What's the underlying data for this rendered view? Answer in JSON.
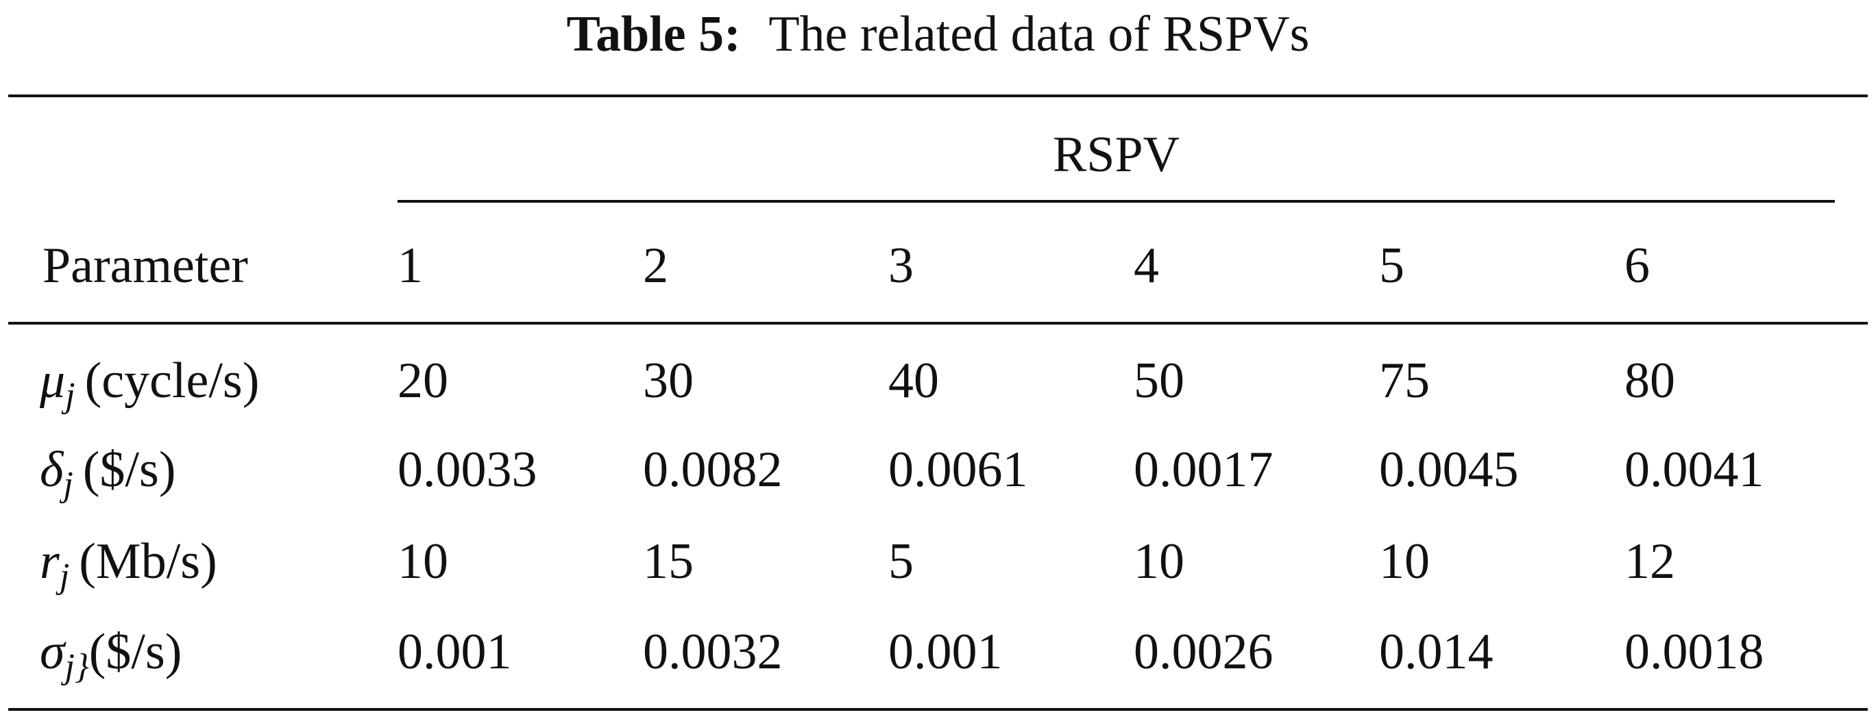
{
  "caption": {
    "label": "Table 5:",
    "text": "The related data of RSPVs"
  },
  "table": {
    "group_header": "RSPV",
    "stub_header": "Parameter",
    "columns": [
      "1",
      "2",
      "3",
      "4",
      "5",
      "6"
    ],
    "rows": [
      {
        "symbol": "μ",
        "subscript": "j",
        "unit": "(cycle/s)",
        "values": [
          "20",
          "30",
          "40",
          "50",
          "75",
          "80"
        ]
      },
      {
        "symbol": "δ",
        "subscript": "j",
        "unit": "($/s)",
        "values": [
          "0.0033",
          "0.0082",
          "0.0061",
          "0.0017",
          "0.0045",
          "0.0041"
        ]
      },
      {
        "symbol": "r",
        "subscript": "j",
        "unit": "(Mb/s)",
        "values": [
          "10",
          "15",
          "5",
          "10",
          "10",
          "12"
        ]
      },
      {
        "symbol": "σ",
        "subscript": "j}",
        "unit": "($/s)",
        "values": [
          "0.001",
          "0.0032",
          "0.001",
          "0.0026",
          "0.014",
          "0.0018"
        ]
      }
    ]
  }
}
